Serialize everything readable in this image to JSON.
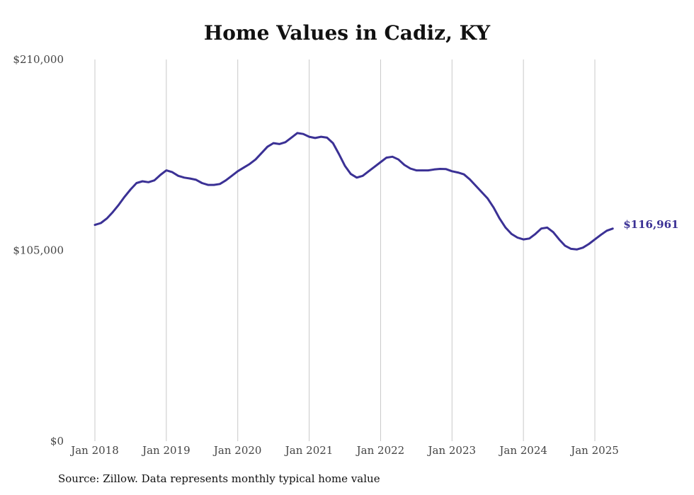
{
  "chart_data": {
    "type": "line",
    "title": "Home Values in Cadiz, KY",
    "xlabel": "",
    "ylabel": "",
    "ylim": [
      0,
      210000
    ],
    "y_ticks": [
      {
        "value": 0,
        "label": "$0"
      },
      {
        "value": 105000,
        "label": "$105,000"
      },
      {
        "value": 210000,
        "label": "$210,000"
      }
    ],
    "x_ticks": [
      {
        "value": "2018-01",
        "label": "Jan 2018"
      },
      {
        "value": "2019-01",
        "label": "Jan 2019"
      },
      {
        "value": "2020-01",
        "label": "Jan 2020"
      },
      {
        "value": "2021-01",
        "label": "Jan 2021"
      },
      {
        "value": "2022-01",
        "label": "Jan 2022"
      },
      {
        "value": "2023-01",
        "label": "Jan 2023"
      },
      {
        "value": "2024-01",
        "label": "Jan 2024"
      },
      {
        "value": "2025-01",
        "label": "Jan 2025"
      }
    ],
    "grid": {
      "vertical": true,
      "horizontal": false
    },
    "line_color": "#3b3195",
    "series": [
      {
        "x": [
          "2018-01",
          "2018-02",
          "2018-03",
          "2018-04",
          "2018-05",
          "2018-06",
          "2018-07",
          "2018-08",
          "2018-09",
          "2018-10",
          "2018-11",
          "2018-12",
          "2019-01",
          "2019-02",
          "2019-03",
          "2019-04",
          "2019-05",
          "2019-06",
          "2019-07",
          "2019-08",
          "2019-09",
          "2019-10",
          "2019-11",
          "2019-12",
          "2020-01",
          "2020-02",
          "2020-03",
          "2020-04",
          "2020-05",
          "2020-06",
          "2020-07",
          "2020-08",
          "2020-09",
          "2020-10",
          "2020-11",
          "2020-12",
          "2021-01",
          "2021-02",
          "2021-03",
          "2021-04",
          "2021-05",
          "2021-06",
          "2021-07",
          "2021-08",
          "2021-09",
          "2021-10",
          "2021-11",
          "2021-12",
          "2022-01",
          "2022-02",
          "2022-03",
          "2022-04",
          "2022-05",
          "2022-06",
          "2022-07",
          "2022-08",
          "2022-09",
          "2022-10",
          "2022-11",
          "2022-12",
          "2023-01",
          "2023-02",
          "2023-03",
          "2023-04",
          "2023-05",
          "2023-06",
          "2023-07",
          "2023-08",
          "2023-09",
          "2023-10",
          "2023-11",
          "2023-12",
          "2024-01",
          "2024-02",
          "2024-03",
          "2024-04",
          "2024-05",
          "2024-06",
          "2024-07",
          "2024-08",
          "2024-09",
          "2024-10",
          "2024-11",
          "2024-12",
          "2025-01",
          "2025-02",
          "2025-03",
          "2025-04"
        ],
        "values": [
          119000,
          120000,
          122500,
          126000,
          130000,
          134500,
          138500,
          142000,
          143000,
          142500,
          143500,
          146500,
          149000,
          148000,
          146000,
          145000,
          144500,
          143800,
          142000,
          141000,
          141000,
          141500,
          143500,
          146000,
          148500,
          150500,
          152500,
          155000,
          158500,
          162000,
          164000,
          163500,
          164500,
          167000,
          169500,
          169000,
          167500,
          166800,
          167500,
          167000,
          164000,
          158000,
          151500,
          147000,
          145000,
          146000,
          148500,
          151000,
          153500,
          156000,
          156500,
          155000,
          152000,
          150000,
          149000,
          149000,
          149000,
          149500,
          149800,
          149700,
          148500,
          147800,
          146800,
          144000,
          140500,
          137000,
          133500,
          128500,
          122500,
          117500,
          114000,
          112000,
          111000,
          111500,
          114000,
          117000,
          117500,
          115000,
          111000,
          107500,
          105800,
          105500,
          106500,
          108500,
          111000,
          113500,
          115800,
          116961
        ]
      }
    ],
    "end_label": "$116,961"
  },
  "source_note": "Source: Zillow. Data represents monthly typical home value"
}
